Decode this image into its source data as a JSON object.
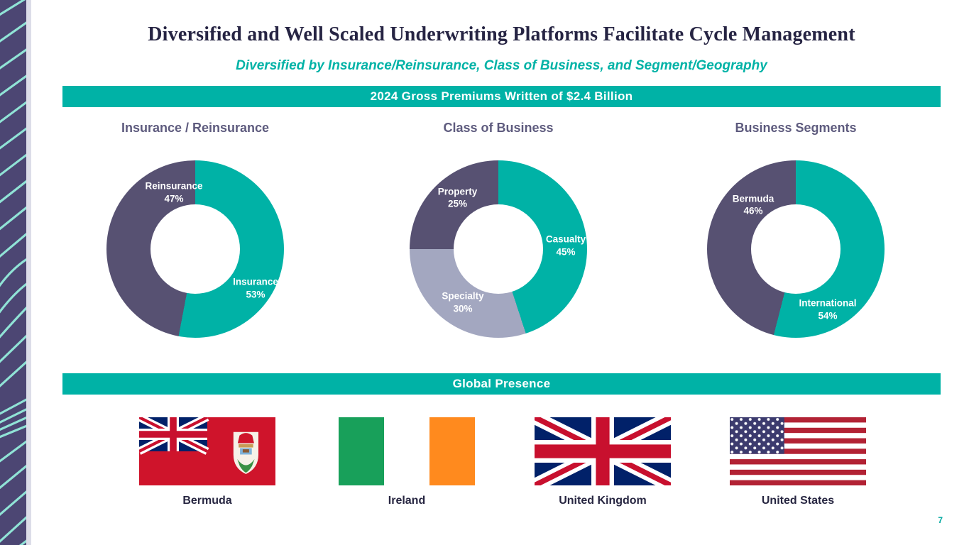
{
  "slide": {
    "title": "Diversified and Well Scaled Underwriting Platforms Facilitate Cycle Management",
    "subtitle": "Diversified by Insurance/Reinsurance, Class of Business, and Segment/Geography",
    "banner1": "2024 Gross Premiums Written of $2.4 Billion",
    "banner2": "Global Presence",
    "page_number": "7"
  },
  "colors": {
    "teal": "#00B2A6",
    "purple": "#575172",
    "lavender": "#A3A7C0",
    "banner_teal": "#00B2A6",
    "title_navy": "#262443",
    "header_purple": "#5E5B7E"
  },
  "chart_data": [
    {
      "type": "pie",
      "donut": true,
      "title": "Insurance / Reinsurance",
      "unit": "%",
      "slices": [
        {
          "label": "Insurance",
          "value": 53,
          "color": "teal",
          "label_pos": [
            84,
            72
          ]
        },
        {
          "label": "Reinsurance",
          "value": 47,
          "color": "purple",
          "label_pos": [
            38,
            18
          ]
        }
      ]
    },
    {
      "type": "pie",
      "donut": true,
      "title": "Class of Business",
      "unit": "%",
      "slices": [
        {
          "label": "Casualty",
          "value": 45,
          "color": "teal",
          "label_pos": [
            88,
            48
          ]
        },
        {
          "label": "Specialty",
          "value": 30,
          "color": "lavender",
          "label_pos": [
            30,
            80
          ]
        },
        {
          "label": "Property",
          "value": 25,
          "color": "purple",
          "label_pos": [
            27,
            21
          ]
        }
      ]
    },
    {
      "type": "pie",
      "donut": true,
      "title": "Business Segments",
      "unit": "%",
      "slices": [
        {
          "label": "International",
          "value": 54,
          "color": "teal",
          "label_pos": [
            68,
            84
          ]
        },
        {
          "label": "Bermuda",
          "value": 46,
          "color": "purple",
          "label_pos": [
            26,
            25
          ]
        }
      ]
    }
  ],
  "countries": [
    {
      "name": "Bermuda"
    },
    {
      "name": "Ireland"
    },
    {
      "name": "United Kingdom"
    },
    {
      "name": "United States"
    }
  ]
}
